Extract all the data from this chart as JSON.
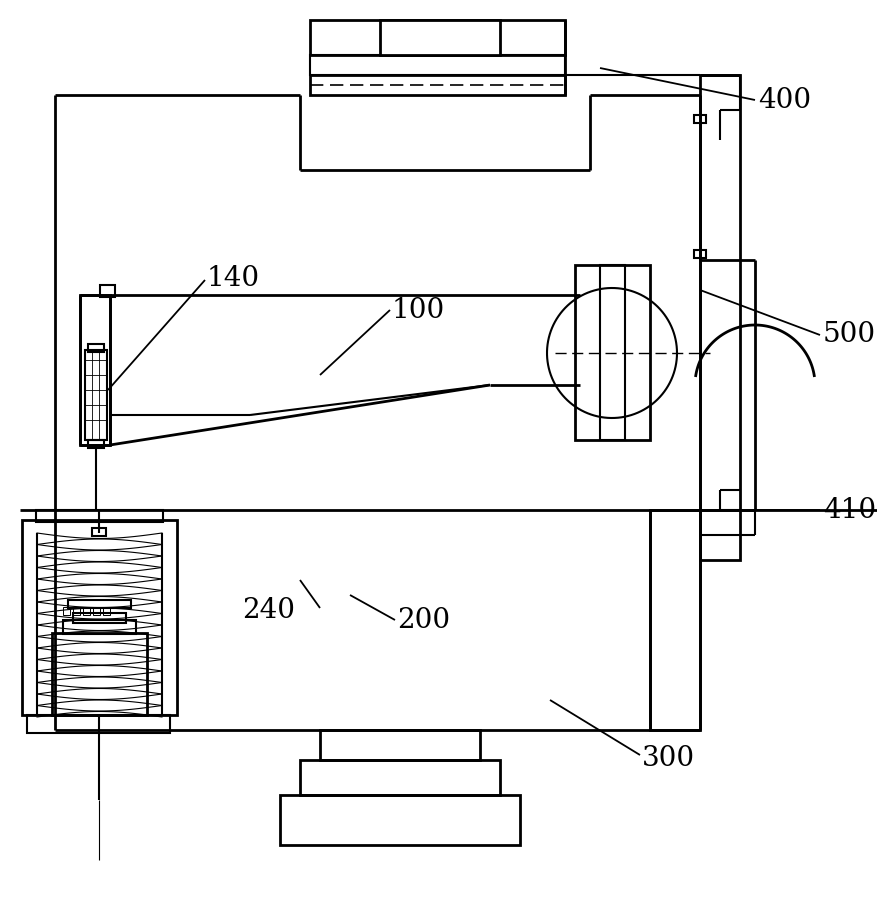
{
  "bg_color": "#ffffff",
  "line_color": "#000000",
  "figsize": [
    8.78,
    9.0
  ],
  "dpi": 100
}
